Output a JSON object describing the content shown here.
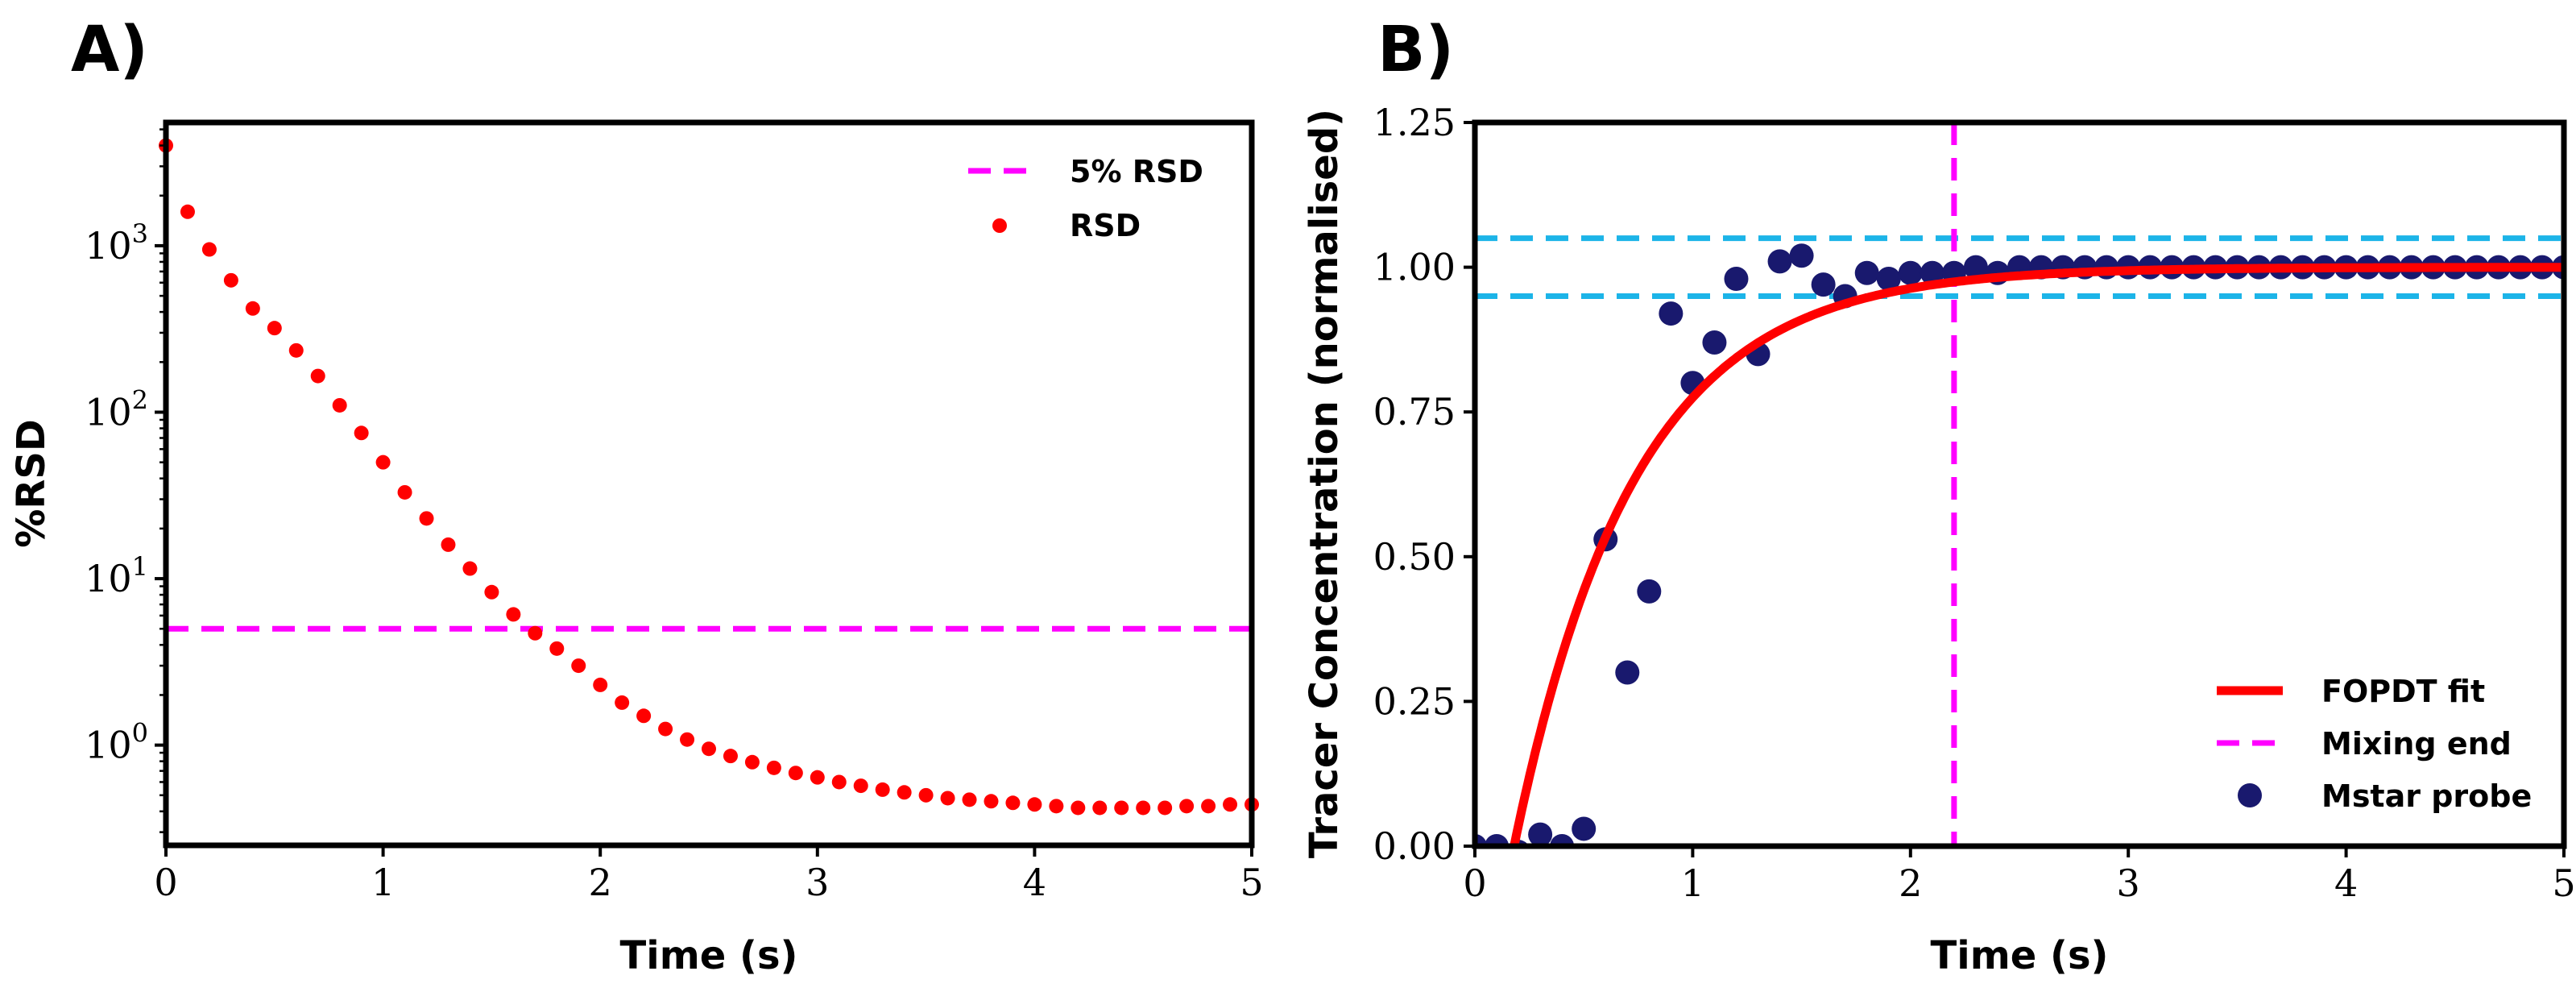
{
  "chart_data": [
    {
      "panel": "A)",
      "type": "scatter",
      "xlabel": "Time (s)",
      "ylabel": "%RSD",
      "yscale": "log",
      "xlim": [
        0,
        5
      ],
      "ylim": [
        0.25,
        5500
      ],
      "xticks": [
        0,
        1,
        2,
        3,
        4,
        5
      ],
      "yticks": [
        {
          "value": 1,
          "base": "10",
          "exp": "0"
        },
        {
          "value": 10,
          "base": "10",
          "exp": "1"
        },
        {
          "value": 100,
          "base": "10",
          "exp": "2"
        },
        {
          "value": 1000,
          "base": "10",
          "exp": "3"
        }
      ],
      "hline": {
        "name": "5% RSD",
        "y": 5,
        "color": "#ff00ff",
        "style": "dashed"
      },
      "series": [
        {
          "name": "RSD",
          "color": "#ff0000",
          "x": [
            0,
            0.1,
            0.2,
            0.3,
            0.4,
            0.5,
            0.6,
            0.7,
            0.8,
            0.9,
            1.0,
            1.1,
            1.2,
            1.3,
            1.4,
            1.5,
            1.6,
            1.7,
            1.8,
            1.9,
            2.0,
            2.1,
            2.2,
            2.3,
            2.4,
            2.5,
            2.6,
            2.7,
            2.8,
            2.9,
            3.0,
            3.1,
            3.2,
            3.3,
            3.4,
            3.5,
            3.6,
            3.7,
            3.8,
            3.9,
            4.0,
            4.1,
            4.2,
            4.3,
            4.4,
            4.5,
            4.6,
            4.7,
            4.8,
            4.9,
            5.0
          ],
          "y": [
            4000,
            1600,
            950,
            620,
            420,
            320,
            235,
            165,
            110,
            75,
            50,
            33,
            23,
            16,
            11.5,
            8.3,
            6.1,
            4.7,
            3.8,
            3.0,
            2.3,
            1.8,
            1.5,
            1.25,
            1.08,
            0.95,
            0.86,
            0.79,
            0.73,
            0.68,
            0.64,
            0.6,
            0.57,
            0.54,
            0.52,
            0.5,
            0.48,
            0.47,
            0.46,
            0.45,
            0.44,
            0.43,
            0.42,
            0.42,
            0.42,
            0.42,
            0.42,
            0.43,
            0.43,
            0.44,
            0.44
          ]
        }
      ],
      "legend": {
        "position": "top-right",
        "entries": [
          "5% RSD",
          "RSD"
        ]
      }
    },
    {
      "panel": "B)",
      "type": "scatter",
      "xlabel": "Time (s)",
      "ylabel": "Tracer Concentration (normalised)",
      "xlim": [
        0,
        5
      ],
      "ylim": [
        0,
        1.25
      ],
      "xticks": [
        0,
        1,
        2,
        3,
        4,
        5
      ],
      "yticks": [
        "0.00",
        "0.25",
        "0.50",
        "0.75",
        "1.00",
        "1.25"
      ],
      "hlines": [
        {
          "y": 0.95,
          "color": "#1cb4e8",
          "style": "dashed"
        },
        {
          "y": 1.05,
          "color": "#1cb4e8",
          "style": "dashed"
        }
      ],
      "vline": {
        "name": "Mixing end",
        "x": 2.2,
        "color": "#ff00ff",
        "style": "dashed"
      },
      "fit": {
        "name": "FOPDT fit",
        "color": "#ff0000",
        "delay": 0.18,
        "tau": 0.55,
        "gain": 1.0
      },
      "series": [
        {
          "name": "Mstar probe",
          "color": "#19196e",
          "x": [
            0.0,
            0.1,
            0.2,
            0.3,
            0.4,
            0.5,
            0.6,
            0.7,
            0.8,
            0.9,
            1.0,
            1.1,
            1.2,
            1.3,
            1.4,
            1.5,
            1.6,
            1.7,
            1.8,
            1.9,
            2.0,
            2.1,
            2.2,
            2.3,
            2.4,
            2.5,
            2.6,
            2.7,
            2.8,
            2.9,
            3.0,
            3.1,
            3.2,
            3.3,
            3.4,
            3.5,
            3.6,
            3.7,
            3.8,
            3.9,
            4.0,
            4.1,
            4.2,
            4.3,
            4.4,
            4.5,
            4.6,
            4.7,
            4.8,
            4.9,
            5.0
          ],
          "y": [
            0.0,
            0.0,
            -0.01,
            0.02,
            0.0,
            0.03,
            0.53,
            0.3,
            0.44,
            0.92,
            0.8,
            0.87,
            0.98,
            0.85,
            1.01,
            1.02,
            0.97,
            0.95,
            0.99,
            0.98,
            0.99,
            0.99,
            0.99,
            1.0,
            0.99,
            1.0,
            1.0,
            1.0,
            1.0,
            1.0,
            1.0,
            1.0,
            1.0,
            1.0,
            1.0,
            1.0,
            1.0,
            1.0,
            1.0,
            1.0,
            1.0,
            1.0,
            1.0,
            1.0,
            1.0,
            1.0,
            1.0,
            1.0,
            1.0,
            1.0,
            1.0
          ]
        }
      ],
      "legend": {
        "position": "bottom-right",
        "entries": [
          "FOPDT fit",
          "Mixing end",
          "Mstar probe"
        ]
      }
    }
  ]
}
